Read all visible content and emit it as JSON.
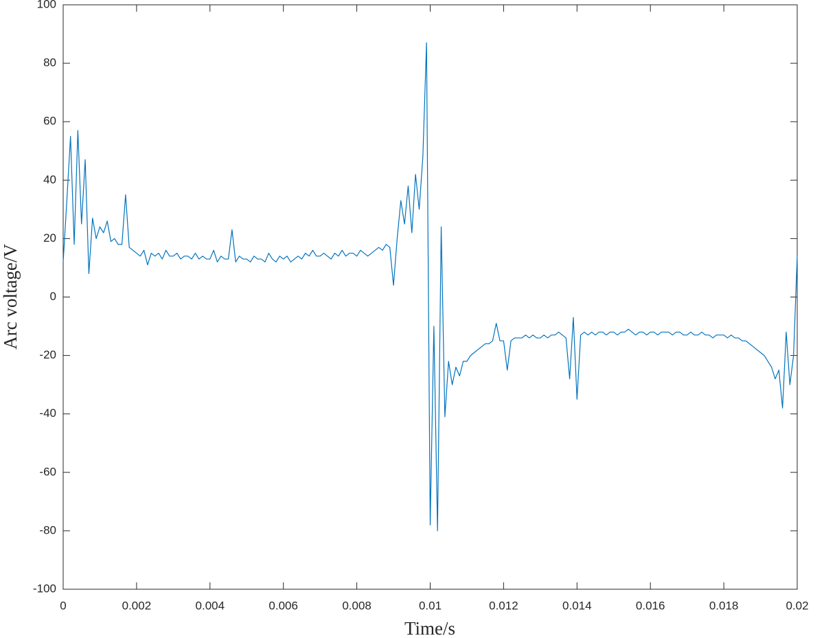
{
  "chart_data": {
    "type": "line",
    "xlabel": "Time/s",
    "ylabel": "Arc voltage/V",
    "color": "#0072bd",
    "xlim": [
      0,
      0.02
    ],
    "ylim": [
      -100,
      100
    ],
    "xticks": [
      0,
      0.002,
      0.004,
      0.006,
      0.008,
      0.01,
      0.012,
      0.014,
      0.016,
      0.018,
      0.02
    ],
    "yticks": [
      -100,
      -80,
      -60,
      -40,
      -20,
      0,
      20,
      40,
      60,
      80,
      100
    ],
    "x": [
      0,
      0.0001,
      0.0002,
      0.0003,
      0.0004,
      0.0005,
      0.0006,
      0.0007,
      0.0008,
      0.0009,
      0.001,
      0.0011,
      0.0012,
      0.0013,
      0.0014,
      0.0015,
      0.0016,
      0.0017,
      0.0018,
      0.0019,
      0.002,
      0.0021,
      0.0022,
      0.0023,
      0.0024,
      0.0025,
      0.0026,
      0.0027,
      0.0028,
      0.0029,
      0.003,
      0.0031,
      0.0032,
      0.0033,
      0.0034,
      0.0035,
      0.0036,
      0.0037,
      0.0038,
      0.0039,
      0.004,
      0.0041,
      0.0042,
      0.0043,
      0.0044,
      0.0045,
      0.0046,
      0.0047,
      0.0048,
      0.0049,
      0.005,
      0.0051,
      0.0052,
      0.0053,
      0.0054,
      0.0055,
      0.0056,
      0.0057,
      0.0058,
      0.0059,
      0.006,
      0.0061,
      0.0062,
      0.0063,
      0.0064,
      0.0065,
      0.0066,
      0.0067,
      0.0068,
      0.0069,
      0.007,
      0.0071,
      0.0072,
      0.0073,
      0.0074,
      0.0075,
      0.0076,
      0.0077,
      0.0078,
      0.0079,
      0.008,
      0.0081,
      0.0082,
      0.0083,
      0.0084,
      0.0085,
      0.0086,
      0.0087,
      0.0088,
      0.0089,
      0.009,
      0.0091,
      0.0092,
      0.0093,
      0.0094,
      0.0095,
      0.0096,
      0.0097,
      0.0098,
      0.0099,
      0.01,
      0.0101,
      0.0102,
      0.0103,
      0.0104,
      0.0105,
      0.0106,
      0.0107,
      0.0108,
      0.0109,
      0.011,
      0.0111,
      0.0112,
      0.0113,
      0.0114,
      0.0115,
      0.0116,
      0.0117,
      0.0118,
      0.0119,
      0.012,
      0.0121,
      0.0122,
      0.0123,
      0.0124,
      0.0125,
      0.0126,
      0.0127,
      0.0128,
      0.0129,
      0.013,
      0.0131,
      0.0132,
      0.0133,
      0.0134,
      0.0135,
      0.0136,
      0.0137,
      0.0138,
      0.0139,
      0.014,
      0.0141,
      0.0142,
      0.0143,
      0.0144,
      0.0145,
      0.0146,
      0.0147,
      0.0148,
      0.0149,
      0.015,
      0.0151,
      0.0152,
      0.0153,
      0.0154,
      0.0155,
      0.0156,
      0.0157,
      0.0158,
      0.0159,
      0.016,
      0.0161,
      0.0162,
      0.0163,
      0.0164,
      0.0165,
      0.0166,
      0.0167,
      0.0168,
      0.0169,
      0.017,
      0.0171,
      0.0172,
      0.0173,
      0.0174,
      0.0175,
      0.0176,
      0.0177,
      0.0178,
      0.0179,
      0.018,
      0.0181,
      0.0182,
      0.0183,
      0.0184,
      0.0185,
      0.0186,
      0.0187,
      0.0188,
      0.0189,
      0.019,
      0.0191,
      0.0192,
      0.0193,
      0.0194,
      0.0195,
      0.0196,
      0.0197,
      0.0198,
      0.0199,
      0.02
    ],
    "values": [
      12,
      33,
      55,
      18,
      57,
      25,
      47,
      8,
      27,
      20,
      24,
      22,
      26,
      19,
      20,
      18,
      18,
      35,
      17,
      16,
      15,
      14,
      16,
      11,
      15,
      14,
      15,
      13,
      16,
      14,
      14,
      15,
      13,
      14,
      14,
      13,
      15,
      13,
      14,
      13,
      13,
      16,
      12,
      14,
      13,
      13,
      23,
      12,
      14,
      13,
      13,
      12,
      14,
      13,
      13,
      12,
      15,
      13,
      12,
      14,
      13,
      14,
      12,
      13,
      14,
      13,
      15,
      14,
      16,
      14,
      14,
      15,
      14,
      13,
      15,
      14,
      16,
      14,
      15,
      15,
      14,
      16,
      15,
      14,
      15,
      16,
      17,
      16,
      18,
      17,
      4,
      20,
      33,
      25,
      38,
      22,
      42,
      30,
      48,
      87,
      -78,
      -10,
      -80,
      24,
      -41,
      -22,
      -30,
      -24,
      -27,
      -22,
      -22,
      -20,
      -19,
      -18,
      -17,
      -16,
      -16,
      -15,
      -9,
      -15,
      -15,
      -25,
      -15,
      -14,
      -14,
      -14,
      -13,
      -14,
      -13,
      -14,
      -14,
      -13,
      -14,
      -13,
      -13,
      -12,
      -13,
      -14,
      -28,
      -7,
      -35,
      -13,
      -12,
      -13,
      -12,
      -13,
      -12,
      -12,
      -13,
      -12,
      -12,
      -13,
      -12,
      -12,
      -11,
      -12,
      -13,
      -12,
      -12,
      -13,
      -12,
      -12,
      -13,
      -12,
      -12,
      -12,
      -13,
      -12,
      -12,
      -13,
      -13,
      -12,
      -13,
      -13,
      -12,
      -13,
      -13,
      -14,
      -13,
      -13,
      -13,
      -14,
      -13,
      -14,
      -14,
      -15,
      -15,
      -16,
      -17,
      -18,
      -19,
      -20,
      -22,
      -24,
      -28,
      -25,
      -38,
      -12,
      -30,
      -20,
      14
    ]
  }
}
